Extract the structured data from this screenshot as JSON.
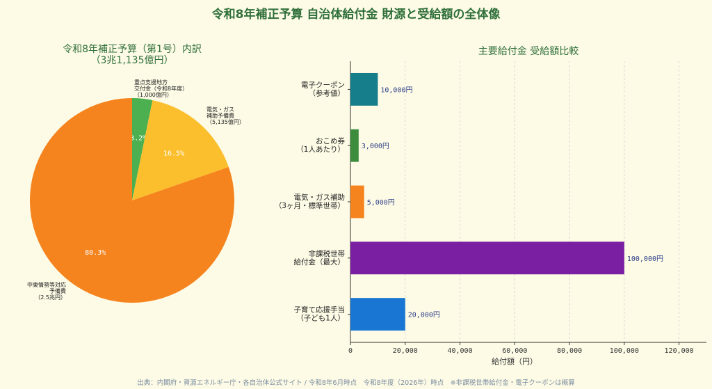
{
  "title": "令和8年補正予算 自治体給付金 財源と受給額の全体像",
  "footer": "出典：内閣府・資源エネルギー庁・各自治体公式サイト / 令和8年6月時点　令和8年度（2026年）時点　※非課税世帯給付金・電子クーポンは概算",
  "chart_data": [
    {
      "type": "pie",
      "title_line1": "令和8年補正予算（第1号）内訳",
      "title_line2": "（3兆1,135億円）",
      "slices": [
        {
          "label": [
            "重点支援地方",
            "交付金（令和8年度）",
            "（1,000億円）"
          ],
          "value": 3.2,
          "pct_label": "3.2%",
          "color": "#4caf50"
        },
        {
          "label": [
            "電気・ガス",
            "補助予備費",
            "（5,135億円）"
          ],
          "value": 16.5,
          "pct_label": "16.5%",
          "color": "#fbbf2e"
        },
        {
          "label": [
            "中東情勢等対応",
            "予備費",
            "（2.5兆円）"
          ],
          "value": 80.3,
          "pct_label": "80.3%",
          "color": "#f5841f"
        }
      ]
    },
    {
      "type": "bar",
      "orientation": "horizontal",
      "title": "主要給付金 受給額比較",
      "xlabel": "給付額（円）",
      "xlim": [
        0,
        130000
      ],
      "xticks": [
        0,
        20000,
        40000,
        60000,
        80000,
        100000,
        120000
      ],
      "xtick_labels": [
        "0",
        "20,000",
        "40,000",
        "60,000",
        "80,000",
        "100,000",
        "120,000"
      ],
      "grid": "vertical-dashed",
      "bars": [
        {
          "label": [
            "電子クーポン",
            "（参考値）"
          ],
          "value": 10000,
          "value_label": "10,000円",
          "color": "#167e8a"
        },
        {
          "label": [
            "おこめ券",
            "（1人あたり）"
          ],
          "value": 3000,
          "value_label": "3,000円",
          "color": "#3d8b3d"
        },
        {
          "label": [
            "電気・ガス補助",
            "（3ヶ月・標準世帯）"
          ],
          "value": 5000,
          "value_label": "5,000円",
          "color": "#f5841f"
        },
        {
          "label": [
            "非課税世帯",
            "給付金（最大）"
          ],
          "value": 100000,
          "value_label": "100,000円",
          "color": "#7b1fa2"
        },
        {
          "label": [
            "子育て応援手当",
            "（子ども1人）"
          ],
          "value": 20000,
          "value_label": "20,000円",
          "color": "#1976d2"
        }
      ]
    }
  ]
}
